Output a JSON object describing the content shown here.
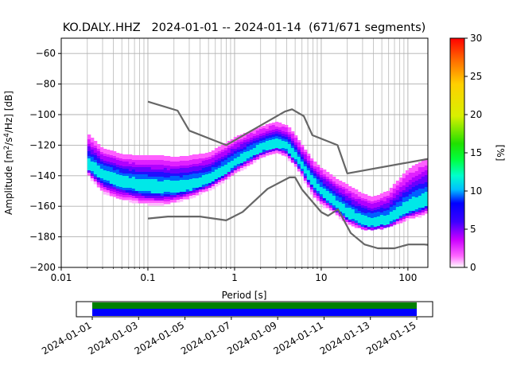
{
  "chart_data": [
    {
      "type": "heatmap",
      "title": "KO.DALY..HHZ   2024-01-01 -- 2024-01-14  (671/671 segments)",
      "xlabel": "Period [s]",
      "ylabel_parts": [
        "Amplitude [m",
        "2",
        "/s",
        "4",
        "/Hz] [dB]"
      ],
      "x_scale": "log",
      "xlim": [
        0.01,
        170
      ],
      "ylim": [
        -200,
        -50
      ],
      "grid": true,
      "x_ticks": [
        {
          "value": 0.01,
          "label": "0.01"
        },
        {
          "value": 0.1,
          "label": "0.1"
        },
        {
          "value": 1,
          "label": "1"
        },
        {
          "value": 10,
          "label": "10"
        },
        {
          "value": 100,
          "label": "100"
        }
      ],
      "y_ticks": [
        {
          "value": -60,
          "label": "−60"
        },
        {
          "value": -80,
          "label": "−80"
        },
        {
          "value": -100,
          "label": "−100"
        },
        {
          "value": -120,
          "label": "−120"
        },
        {
          "value": -140,
          "label": "−140"
        },
        {
          "value": -160,
          "label": "−160"
        },
        {
          "value": -180,
          "label": "−180"
        },
        {
          "value": -200,
          "label": "−200"
        }
      ],
      "mode_curve": {
        "name": "mode",
        "x": [
          0.02,
          0.03,
          0.05,
          0.08,
          0.1,
          0.15,
          0.2,
          0.3,
          0.5,
          0.8,
          1,
          1.5,
          2,
          3,
          4,
          5,
          6,
          8,
          10,
          15,
          20,
          30,
          40,
          60,
          80,
          100,
          150,
          170
        ],
        "y": [
          -134,
          -140,
          -145,
          -147,
          -148,
          -149,
          -149,
          -148,
          -144,
          -137,
          -133,
          -127,
          -123,
          -120,
          -122,
          -128,
          -134,
          -145,
          -151,
          -160,
          -166,
          -171,
          -172,
          -170,
          -166,
          -163,
          -159,
          -158
        ]
      },
      "spread_upper": [
        -112,
        -122,
        -126,
        -127,
        -127,
        -127,
        -128,
        -127,
        -125,
        -119,
        -115,
        -111,
        -108,
        -105,
        -107,
        -113,
        -120,
        -130,
        -135,
        -142,
        -146,
        -152,
        -154,
        -150,
        -142,
        -136,
        -130,
        -128
      ],
      "spread_lower": [
        -138,
        -150,
        -155,
        -157,
        -158,
        -158,
        -157,
        -154,
        -149,
        -142,
        -138,
        -132,
        -128,
        -124,
        -127,
        -133,
        -140,
        -152,
        -158,
        -165,
        -171,
        -174,
        -174,
        -173,
        -170,
        -168,
        -165,
        -164
      ],
      "noise_models": [
        {
          "name": "upper model",
          "x": [
            0.1,
            0.22,
            0.3,
            0.8,
            3.8,
            4.6,
            6.3,
            7.9,
            15.4,
            20,
            170
          ],
          "y": [
            -91.5,
            -97.4,
            -110.5,
            -120,
            -98,
            -96.5,
            -101,
            -113.5,
            -120,
            -138.5,
            -129
          ]
        },
        {
          "name": "lower model",
          "x": [
            0.1,
            0.17,
            0.4,
            0.8,
            1.24,
            2.4,
            4.3,
            5,
            6,
            10,
            12,
            15.6,
            21.9,
            31.6,
            45,
            70,
            101,
            154,
            170
          ],
          "y": [
            -168,
            -166.7,
            -166.7,
            -169.2,
            -163.7,
            -148.6,
            -141.1,
            -141.1,
            -149,
            -163.8,
            -166.2,
            -162,
            -177.5,
            -185,
            -187.5,
            -187.5,
            -185,
            -185,
            -185.2
          ]
        }
      ],
      "colorbar": {
        "label": "[%]",
        "range": [
          0,
          30
        ],
        "ticks": [
          "0",
          "5",
          "10",
          "15",
          "20",
          "25",
          "30"
        ]
      }
    },
    {
      "type": "timeline",
      "x_range": [
        "2024-01-01",
        "2024-01-15"
      ],
      "tick_labels": [
        "2024-01-01",
        "2024-01-03",
        "2024-01-05",
        "2024-01-07",
        "2024-01-09",
        "2024-01-11",
        "2024-01-13",
        "2024-01-15"
      ],
      "bars": [
        {
          "name": "data",
          "color": "#008000",
          "start": "2024-01-01",
          "end": "2024-01-15"
        },
        {
          "name": "segments",
          "color": "#0000ff",
          "start": "2024-01-01",
          "end": "2024-01-15"
        }
      ]
    }
  ],
  "colors": {
    "model_line": "#666666",
    "grid": "#b0b0b0"
  }
}
